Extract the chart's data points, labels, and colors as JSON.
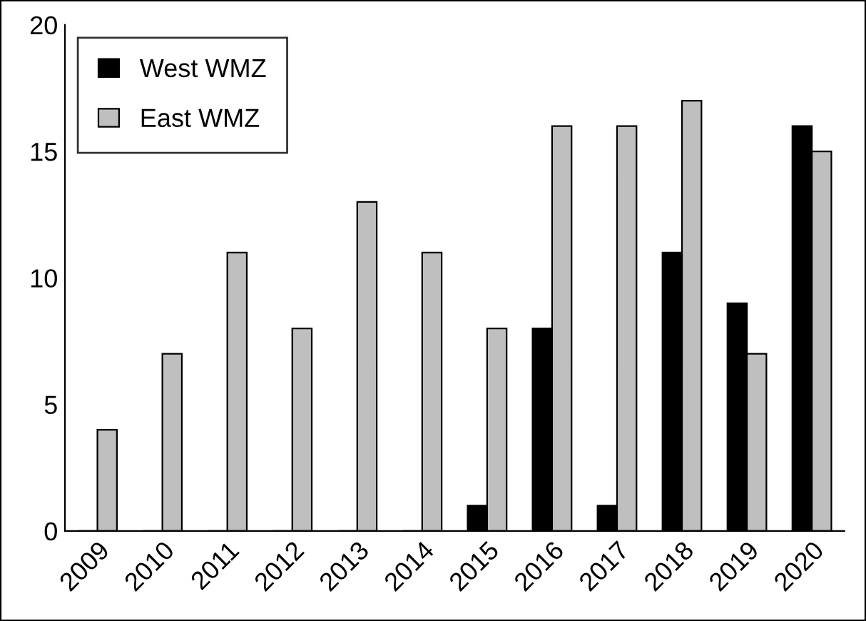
{
  "chart_data": {
    "type": "bar",
    "categories": [
      "2009",
      "2010",
      "2011",
      "2012",
      "2013",
      "2014",
      "2015",
      "2016",
      "2017",
      "2018",
      "2019",
      "2020"
    ],
    "series": [
      {
        "name": "West WMZ",
        "color": "#000000",
        "values": [
          0,
          0,
          0,
          0,
          0,
          0,
          1,
          8,
          1,
          11,
          9,
          16
        ]
      },
      {
        "name": "East WMZ",
        "color": "#bfbfbf",
        "values": [
          4,
          7,
          11,
          8,
          13,
          11,
          8,
          16,
          16,
          17,
          7,
          15
        ]
      }
    ],
    "ylim": [
      0,
      20
    ],
    "yticks": [
      0,
      5,
      10,
      15,
      20
    ],
    "grid": false,
    "legend": "top left"
  }
}
